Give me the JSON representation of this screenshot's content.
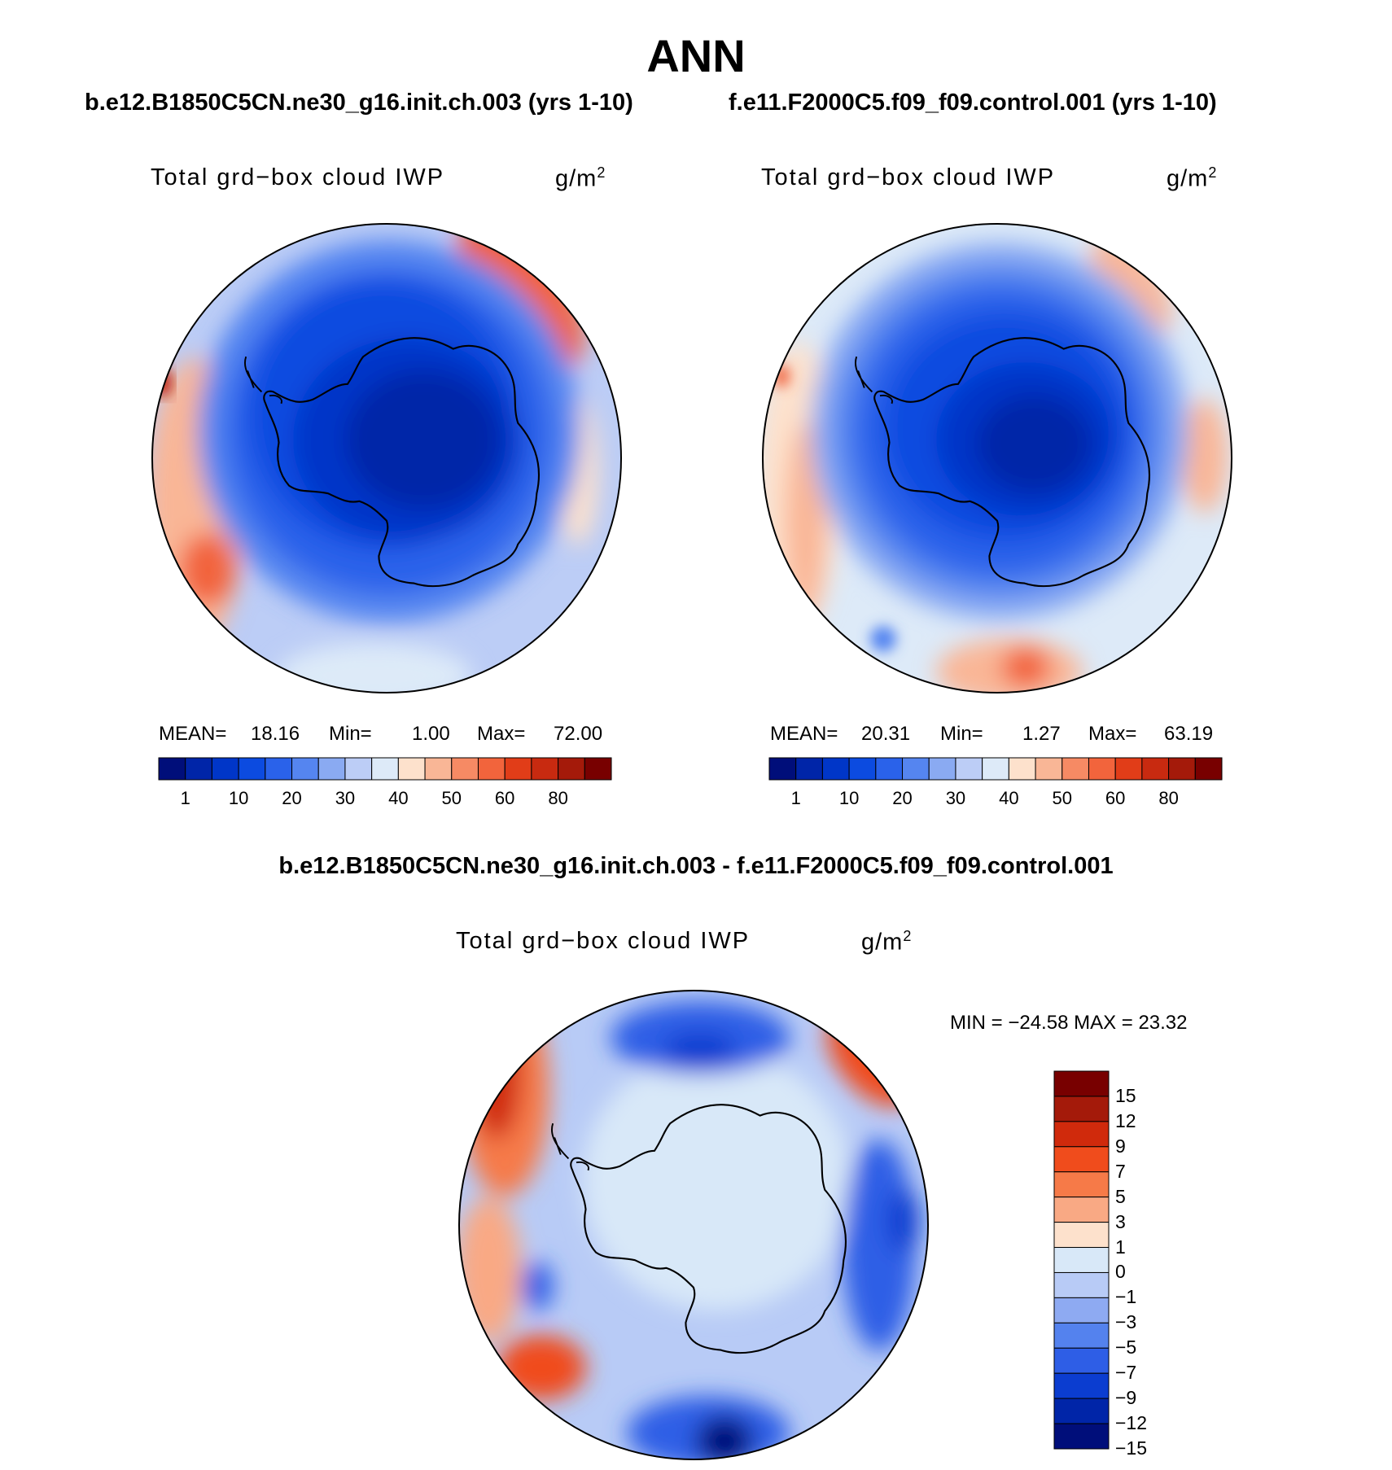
{
  "page": {
    "season": "ANN"
  },
  "panels": [
    {
      "id": "test",
      "case_title": "b.e12.B1850C5CN.ne30_g16.init.ch.003 (yrs 1-10)",
      "variable": "Total grd−box cloud IWP",
      "units": "g/m",
      "units_exp": "2",
      "mean_label": "MEAN=",
      "mean_value": "18.16",
      "min_label": "Min=",
      "min_value": "1.00",
      "max_label": "Max=",
      "max_value": "72.00"
    },
    {
      "id": "control",
      "case_title": "f.e11.F2000C5.f09_f09.control.001 (yrs 1-10)",
      "variable": "Total grd−box cloud IWP",
      "units": "g/m",
      "units_exp": "2",
      "mean_label": "MEAN=",
      "mean_value": "20.31",
      "min_label": "Min=",
      "min_value": "1.27",
      "max_label": "Max=",
      "max_value": "63.19"
    }
  ],
  "difference": {
    "title": "b.e12.B1850C5CN.ne30_g16.init.ch.003 - f.e11.F2000C5.f09_f09.control.001",
    "variable": "Total grd−box cloud IWP",
    "units": "g/m",
    "units_exp": "2",
    "minmax_text": "MIN = −24.58 MAX =   23.32"
  },
  "colorbars": {
    "abs_colors": [
      "#000e7a",
      "#0025a8",
      "#0036c8",
      "#0c4be0",
      "#2a62ea",
      "#5585f0",
      "#8aaaf2",
      "#bccdf6",
      "#ddeaf8",
      "#fde1cc",
      "#f9b696",
      "#f68a64",
      "#f2643c",
      "#e13d18",
      "#c82a10",
      "#a41a0a",
      "#780000"
    ],
    "abs_ticks": [
      "1",
      "10",
      "20",
      "30",
      "40",
      "50",
      "60",
      "80"
    ],
    "diff_colors": [
      "#780000",
      "#a41a0a",
      "#d02a0c",
      "#f04c1c",
      "#f67a48",
      "#f9a984",
      "#fde1cc",
      "#d8e8f8",
      "#b8cbf6",
      "#8eaaf2",
      "#5482ee",
      "#2e5ee6",
      "#0b3dd0",
      "#0025a8",
      "#000e7a"
    ],
    "diff_ticks": [
      "15",
      "12",
      "9",
      "7",
      "5",
      "3",
      "1",
      "0",
      "−1",
      "−3",
      "−5",
      "−7",
      "−9",
      "−12",
      "−15"
    ]
  }
}
